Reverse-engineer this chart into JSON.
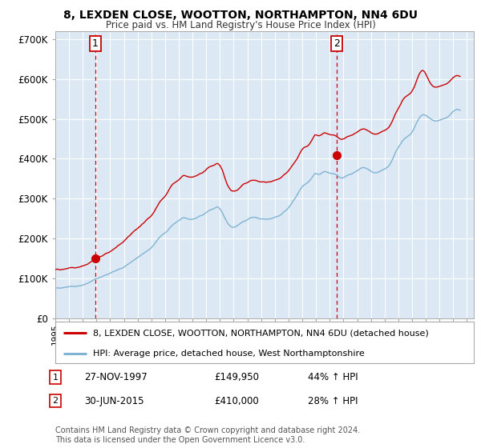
{
  "title1": "8, LEXDEN CLOSE, WOOTTON, NORTHAMPTON, NN4 6DU",
  "title2": "Price paid vs. HM Land Registry's House Price Index (HPI)",
  "ylabel_ticks": [
    "£0",
    "£100K",
    "£200K",
    "£300K",
    "£400K",
    "£500K",
    "£600K",
    "£700K"
  ],
  "ytick_vals": [
    0,
    100000,
    200000,
    300000,
    400000,
    500000,
    600000,
    700000
  ],
  "ylim": [
    0,
    720000
  ],
  "xlim_start": 1995.0,
  "xlim_end": 2025.5,
  "xtick_years": [
    1995,
    1996,
    1997,
    1998,
    1999,
    2000,
    2001,
    2002,
    2003,
    2004,
    2005,
    2006,
    2007,
    2008,
    2009,
    2010,
    2011,
    2012,
    2013,
    2014,
    2015,
    2016,
    2017,
    2018,
    2019,
    2020,
    2021,
    2022,
    2023,
    2024,
    2025
  ],
  "sale1_x": 1997.92,
  "sale1_y": 149950,
  "sale1_label": "1",
  "sale1_date": "27-NOV-1997",
  "sale1_price": "£149,950",
  "sale1_hpi": "44% ↑ HPI",
  "sale2_x": 2015.5,
  "sale2_y": 410000,
  "sale2_label": "2",
  "sale2_date": "30-JUN-2015",
  "sale2_price": "£410,000",
  "sale2_hpi": "28% ↑ HPI",
  "legend_line1": "8, LEXDEN CLOSE, WOOTTON, NORTHAMPTON, NN4 6DU (detached house)",
  "legend_line2": "HPI: Average price, detached house, West Northamptonshire",
  "footer": "Contains HM Land Registry data © Crown copyright and database right 2024.\nThis data is licensed under the Open Government Licence v3.0.",
  "line_color_red": "#cc0000",
  "line_color_blue": "#7fb3d3",
  "marker_color_red": "#cc0000",
  "bg_color": "#ffffff",
  "plot_bg_color": "#dce9f5",
  "grid_color": "#ffffff",
  "hpi_red_years": [
    1995.0,
    1995.08,
    1995.17,
    1995.25,
    1995.33,
    1995.42,
    1995.5,
    1995.58,
    1995.67,
    1995.75,
    1995.83,
    1995.92,
    1996.0,
    1996.08,
    1996.17,
    1996.25,
    1996.33,
    1996.42,
    1996.5,
    1996.58,
    1996.67,
    1996.75,
    1996.83,
    1996.92,
    1997.0,
    1997.08,
    1997.17,
    1997.25,
    1997.33,
    1997.42,
    1997.5,
    1997.58,
    1997.67,
    1997.75,
    1997.83,
    1997.92,
    1998.0,
    1998.08,
    1998.17,
    1998.25,
    1998.33,
    1998.42,
    1998.5,
    1998.58,
    1998.67,
    1998.75,
    1998.83,
    1998.92,
    1999.0,
    1999.08,
    1999.17,
    1999.25,
    1999.33,
    1999.42,
    1999.5,
    1999.58,
    1999.67,
    1999.75,
    1999.83,
    1999.92,
    2000.0,
    2000.08,
    2000.17,
    2000.25,
    2000.33,
    2000.42,
    2000.5,
    2000.58,
    2000.67,
    2000.75,
    2000.83,
    2000.92,
    2001.0,
    2001.08,
    2001.17,
    2001.25,
    2001.33,
    2001.42,
    2001.5,
    2001.58,
    2001.67,
    2001.75,
    2001.83,
    2001.92,
    2002.0,
    2002.08,
    2002.17,
    2002.25,
    2002.33,
    2002.42,
    2002.5,
    2002.58,
    2002.67,
    2002.75,
    2002.83,
    2002.92,
    2003.0,
    2003.08,
    2003.17,
    2003.25,
    2003.33,
    2003.42,
    2003.5,
    2003.58,
    2003.67,
    2003.75,
    2003.83,
    2003.92,
    2004.0,
    2004.08,
    2004.17,
    2004.25,
    2004.33,
    2004.42,
    2004.5,
    2004.58,
    2004.67,
    2004.75,
    2004.83,
    2004.92,
    2005.0,
    2005.08,
    2005.17,
    2005.25,
    2005.33,
    2005.42,
    2005.5,
    2005.58,
    2005.67,
    2005.75,
    2005.83,
    2005.92,
    2006.0,
    2006.08,
    2006.17,
    2006.25,
    2006.33,
    2006.42,
    2006.5,
    2006.58,
    2006.67,
    2006.75,
    2006.83,
    2006.92,
    2007.0,
    2007.08,
    2007.17,
    2007.25,
    2007.33,
    2007.42,
    2007.5,
    2007.58,
    2007.67,
    2007.75,
    2007.83,
    2007.92,
    2008.0,
    2008.08,
    2008.17,
    2008.25,
    2008.33,
    2008.42,
    2008.5,
    2008.58,
    2008.67,
    2008.75,
    2008.83,
    2008.92,
    2009.0,
    2009.08,
    2009.17,
    2009.25,
    2009.33,
    2009.42,
    2009.5,
    2009.58,
    2009.67,
    2009.75,
    2009.83,
    2009.92,
    2010.0,
    2010.08,
    2010.17,
    2010.25,
    2010.33,
    2010.42,
    2010.5,
    2010.58,
    2010.67,
    2010.75,
    2010.83,
    2010.92,
    2011.0,
    2011.08,
    2011.17,
    2011.25,
    2011.33,
    2011.42,
    2011.5,
    2011.58,
    2011.67,
    2011.75,
    2011.83,
    2011.92,
    2012.0,
    2012.08,
    2012.17,
    2012.25,
    2012.33,
    2012.42,
    2012.5,
    2012.58,
    2012.67,
    2012.75,
    2012.83,
    2012.92,
    2013.0,
    2013.08,
    2013.17,
    2013.25,
    2013.33,
    2013.42,
    2013.5,
    2013.58,
    2013.67,
    2013.75,
    2013.83,
    2013.92,
    2014.0,
    2014.08,
    2014.17,
    2014.25,
    2014.33,
    2014.42,
    2014.5,
    2014.58,
    2014.67,
    2014.75,
    2014.83,
    2014.92,
    2015.0,
    2015.08,
    2015.17,
    2015.25,
    2015.33,
    2015.42,
    2015.5,
    2015.58,
    2015.67,
    2015.75,
    2015.83,
    2015.92,
    2016.0,
    2016.08,
    2016.17,
    2016.25,
    2016.33,
    2016.42,
    2016.5,
    2016.58,
    2016.67,
    2016.75,
    2016.83,
    2016.92,
    2017.0,
    2017.08,
    2017.17,
    2017.25,
    2017.33,
    2017.42,
    2017.5,
    2017.58,
    2017.67,
    2017.75,
    2017.83,
    2017.92,
    2018.0,
    2018.08,
    2018.17,
    2018.25,
    2018.33,
    2018.42,
    2018.5,
    2018.58,
    2018.67,
    2018.75,
    2018.83,
    2018.92,
    2019.0,
    2019.08,
    2019.17,
    2019.25,
    2019.33,
    2019.42,
    2019.5,
    2019.58,
    2019.67,
    2019.75,
    2019.83,
    2019.92,
    2020.0,
    2020.08,
    2020.17,
    2020.25,
    2020.33,
    2020.42,
    2020.5,
    2020.58,
    2020.67,
    2020.75,
    2020.83,
    2020.92,
    2021.0,
    2021.08,
    2021.17,
    2021.25,
    2021.33,
    2021.42,
    2021.5,
    2021.58,
    2021.67,
    2021.75,
    2021.83,
    2021.92,
    2022.0,
    2022.08,
    2022.17,
    2022.25,
    2022.33,
    2022.42,
    2022.5,
    2022.58,
    2022.67,
    2022.75,
    2022.83,
    2022.92,
    2023.0,
    2023.08,
    2023.17,
    2023.25,
    2023.33,
    2023.42,
    2023.5,
    2023.58,
    2023.67,
    2023.75,
    2023.83,
    2023.92,
    2024.0,
    2024.08,
    2024.17,
    2024.25,
    2024.33,
    2024.42,
    2024.5
  ],
  "hpi_red_vals": [
    122000,
    122500,
    123000,
    122000,
    121000,
    121500,
    122000,
    122500,
    123000,
    123500,
    124000,
    125000,
    126000,
    126500,
    127000,
    127000,
    126500,
    126000,
    126500,
    127000,
    127500,
    128000,
    129000,
    130000,
    131000,
    132000,
    133000,
    134000,
    135000,
    137000,
    139000,
    141000,
    143000,
    146000,
    148000,
    149950,
    151000,
    152000,
    153000,
    154000,
    155000,
    156000,
    158000,
    160000,
    162000,
    163000,
    164000,
    165000,
    167000,
    169000,
    171000,
    173000,
    175000,
    177000,
    180000,
    182000,
    184000,
    186000,
    188000,
    190000,
    193000,
    196000,
    199000,
    202000,
    205000,
    207000,
    210000,
    213000,
    216000,
    219000,
    221000,
    223000,
    225000,
    228000,
    230000,
    233000,
    236000,
    238000,
    241000,
    244000,
    247000,
    250000,
    252000,
    254000,
    257000,
    261000,
    265000,
    270000,
    275000,
    280000,
    285000,
    290000,
    294000,
    297000,
    300000,
    303000,
    306000,
    310000,
    315000,
    320000,
    325000,
    330000,
    334000,
    337000,
    339000,
    341000,
    343000,
    345000,
    347000,
    350000,
    353000,
    356000,
    358000,
    358000,
    357000,
    356000,
    355000,
    354000,
    354000,
    354000,
    354000,
    355000,
    356000,
    357000,
    358000,
    360000,
    362000,
    363000,
    364000,
    365000,
    368000,
    370000,
    373000,
    376000,
    378000,
    380000,
    381000,
    382000,
    383000,
    384000,
    386000,
    388000,
    388000,
    386000,
    383000,
    378000,
    372000,
    364000,
    355000,
    346000,
    338000,
    332000,
    327000,
    323000,
    320000,
    319000,
    319000,
    319000,
    320000,
    321000,
    323000,
    326000,
    329000,
    332000,
    335000,
    337000,
    338000,
    339000,
    340000,
    342000,
    344000,
    345000,
    346000,
    346000,
    346000,
    346000,
    345000,
    344000,
    343000,
    342000,
    342000,
    342000,
    342000,
    342000,
    341000,
    341000,
    342000,
    342000,
    342000,
    343000,
    344000,
    345000,
    346000,
    347000,
    348000,
    349000,
    350000,
    352000,
    354000,
    357000,
    360000,
    362000,
    364000,
    367000,
    370000,
    374000,
    378000,
    382000,
    386000,
    390000,
    394000,
    398000,
    403000,
    409000,
    414000,
    420000,
    424000,
    427000,
    429000,
    430000,
    431000,
    433000,
    436000,
    440000,
    445000,
    450000,
    455000,
    460000,
    460000,
    459000,
    458000,
    458000,
    459000,
    461000,
    463000,
    465000,
    465000,
    464000,
    463000,
    462000,
    461000,
    460000,
    460000,
    460000,
    459000,
    458000,
    456000,
    454000,
    452000,
    450000,
    449000,
    449000,
    450000,
    451000,
    453000,
    455000,
    456000,
    457000,
    458000,
    459000,
    460000,
    462000,
    464000,
    465000,
    467000,
    469000,
    471000,
    473000,
    474000,
    475000,
    475000,
    474000,
    473000,
    471000,
    470000,
    468000,
    466000,
    464000,
    463000,
    462000,
    462000,
    462000,
    463000,
    464000,
    466000,
    467000,
    469000,
    470000,
    471000,
    473000,
    475000,
    477000,
    480000,
    485000,
    490000,
    496000,
    503000,
    510000,
    516000,
    521000,
    526000,
    531000,
    537000,
    543000,
    548000,
    552000,
    555000,
    557000,
    559000,
    561000,
    563000,
    566000,
    570000,
    575000,
    581000,
    588000,
    596000,
    604000,
    611000,
    616000,
    620000,
    622000,
    621000,
    618000,
    613000,
    607000,
    601000,
    595000,
    590000,
    586000,
    583000,
    581000,
    580000,
    580000,
    580000,
    581000,
    582000,
    583000,
    584000,
    585000,
    586000,
    587000,
    588000,
    590000,
    592000,
    595000,
    598000,
    601000,
    604000,
    606000,
    608000,
    609000,
    609000,
    608000,
    607000
  ],
  "hpi_blue_years": [
    1995.0,
    1995.08,
    1995.17,
    1995.25,
    1995.33,
    1995.42,
    1995.5,
    1995.58,
    1995.67,
    1995.75,
    1995.83,
    1995.92,
    1996.0,
    1996.08,
    1996.17,
    1996.25,
    1996.33,
    1996.42,
    1996.5,
    1996.58,
    1996.67,
    1996.75,
    1996.83,
    1996.92,
    1997.0,
    1997.08,
    1997.17,
    1997.25,
    1997.33,
    1997.42,
    1997.5,
    1997.58,
    1997.67,
    1997.75,
    1997.83,
    1997.92,
    1998.0,
    1998.08,
    1998.17,
    1998.25,
    1998.33,
    1998.42,
    1998.5,
    1998.58,
    1998.67,
    1998.75,
    1998.83,
    1998.92,
    1999.0,
    1999.08,
    1999.17,
    1999.25,
    1999.33,
    1999.42,
    1999.5,
    1999.58,
    1999.67,
    1999.75,
    1999.83,
    1999.92,
    2000.0,
    2000.08,
    2000.17,
    2000.25,
    2000.33,
    2000.42,
    2000.5,
    2000.58,
    2000.67,
    2000.75,
    2000.83,
    2000.92,
    2001.0,
    2001.08,
    2001.17,
    2001.25,
    2001.33,
    2001.42,
    2001.5,
    2001.58,
    2001.67,
    2001.75,
    2001.83,
    2001.92,
    2002.0,
    2002.08,
    2002.17,
    2002.25,
    2002.33,
    2002.42,
    2002.5,
    2002.58,
    2002.67,
    2002.75,
    2002.83,
    2002.92,
    2003.0,
    2003.08,
    2003.17,
    2003.25,
    2003.33,
    2003.42,
    2003.5,
    2003.58,
    2003.67,
    2003.75,
    2003.83,
    2003.92,
    2004.0,
    2004.08,
    2004.17,
    2004.25,
    2004.33,
    2004.42,
    2004.5,
    2004.58,
    2004.67,
    2004.75,
    2004.83,
    2004.92,
    2005.0,
    2005.08,
    2005.17,
    2005.25,
    2005.33,
    2005.42,
    2005.5,
    2005.58,
    2005.67,
    2005.75,
    2005.83,
    2005.92,
    2006.0,
    2006.08,
    2006.17,
    2006.25,
    2006.33,
    2006.42,
    2006.5,
    2006.58,
    2006.67,
    2006.75,
    2006.83,
    2006.92,
    2007.0,
    2007.08,
    2007.17,
    2007.25,
    2007.33,
    2007.42,
    2007.5,
    2007.58,
    2007.67,
    2007.75,
    2007.83,
    2007.92,
    2008.0,
    2008.08,
    2008.17,
    2008.25,
    2008.33,
    2008.42,
    2008.5,
    2008.58,
    2008.67,
    2008.75,
    2008.83,
    2008.92,
    2009.0,
    2009.08,
    2009.17,
    2009.25,
    2009.33,
    2009.42,
    2009.5,
    2009.58,
    2009.67,
    2009.75,
    2009.83,
    2009.92,
    2010.0,
    2010.08,
    2010.17,
    2010.25,
    2010.33,
    2010.42,
    2010.5,
    2010.58,
    2010.67,
    2010.75,
    2010.83,
    2010.92,
    2011.0,
    2011.08,
    2011.17,
    2011.25,
    2011.33,
    2011.42,
    2011.5,
    2011.58,
    2011.67,
    2011.75,
    2011.83,
    2011.92,
    2012.0,
    2012.08,
    2012.17,
    2012.25,
    2012.33,
    2012.42,
    2012.5,
    2012.58,
    2012.67,
    2012.75,
    2012.83,
    2012.92,
    2013.0,
    2013.08,
    2013.17,
    2013.25,
    2013.33,
    2013.42,
    2013.5,
    2013.58,
    2013.67,
    2013.75,
    2013.83,
    2013.92,
    2014.0,
    2014.08,
    2014.17,
    2014.25,
    2014.33,
    2014.42,
    2014.5,
    2014.58,
    2014.67,
    2014.75,
    2014.83,
    2014.92,
    2015.0,
    2015.08,
    2015.17,
    2015.25,
    2015.33,
    2015.42,
    2015.5,
    2015.58,
    2015.67,
    2015.75,
    2015.83,
    2015.92,
    2016.0,
    2016.08,
    2016.17,
    2016.25,
    2016.33,
    2016.42,
    2016.5,
    2016.58,
    2016.67,
    2016.75,
    2016.83,
    2016.92,
    2017.0,
    2017.08,
    2017.17,
    2017.25,
    2017.33,
    2017.42,
    2017.5,
    2017.58,
    2017.67,
    2017.75,
    2017.83,
    2017.92,
    2018.0,
    2018.08,
    2018.17,
    2018.25,
    2018.33,
    2018.42,
    2018.5,
    2018.58,
    2018.67,
    2018.75,
    2018.83,
    2018.92,
    2019.0,
    2019.08,
    2019.17,
    2019.25,
    2019.33,
    2019.42,
    2019.5,
    2019.58,
    2019.67,
    2019.75,
    2019.83,
    2019.92,
    2020.0,
    2020.08,
    2020.17,
    2020.25,
    2020.33,
    2020.42,
    2020.5,
    2020.58,
    2020.67,
    2020.75,
    2020.83,
    2020.92,
    2021.0,
    2021.08,
    2021.17,
    2021.25,
    2021.33,
    2021.42,
    2021.5,
    2021.58,
    2021.67,
    2021.75,
    2021.83,
    2021.92,
    2022.0,
    2022.08,
    2022.17,
    2022.25,
    2022.33,
    2022.42,
    2022.5,
    2022.58,
    2022.67,
    2022.75,
    2022.83,
    2022.92,
    2023.0,
    2023.08,
    2023.17,
    2023.25,
    2023.33,
    2023.42,
    2023.5,
    2023.58,
    2023.67,
    2023.75,
    2023.83,
    2023.92,
    2024.0,
    2024.08,
    2024.17,
    2024.25,
    2024.33,
    2024.42,
    2024.5
  ],
  "hpi_blue_vals": [
    75000,
    75500,
    76000,
    75500,
    75000,
    75500,
    76000,
    76500,
    77000,
    77500,
    78000,
    78500,
    79000,
    79500,
    80000,
    80000,
    79500,
    79000,
    79500,
    80000,
    80500,
    81000,
    81500,
    82000,
    83000,
    84000,
    85000,
    86000,
    87000,
    88500,
    90000,
    91500,
    93000,
    95000,
    97000,
    98000,
    99000,
    100000,
    101000,
    102000,
    103000,
    104000,
    106000,
    107000,
    108000,
    109000,
    110000,
    111000,
    113000,
    114000,
    116000,
    117000,
    118000,
    119000,
    121000,
    122000,
    123000,
    124000,
    125000,
    126000,
    128000,
    130000,
    132000,
    134000,
    136000,
    138000,
    140000,
    142000,
    144000,
    146000,
    148000,
    150000,
    152000,
    154000,
    156000,
    158000,
    160000,
    162000,
    164000,
    166000,
    168000,
    170000,
    172000,
    174000,
    177000,
    180000,
    183000,
    187000,
    191000,
    195000,
    199000,
    202000,
    205000,
    208000,
    210000,
    212000,
    214000,
    216000,
    219000,
    222000,
    226000,
    229000,
    232000,
    235000,
    237000,
    239000,
    241000,
    243000,
    245000,
    247000,
    249000,
    251000,
    252000,
    252000,
    251000,
    250000,
    249000,
    248000,
    248000,
    248000,
    248000,
    249000,
    250000,
    251000,
    252000,
    254000,
    256000,
    257000,
    258000,
    259000,
    261000,
    263000,
    265000,
    267000,
    269000,
    271000,
    272000,
    273000,
    274000,
    275000,
    277000,
    279000,
    279000,
    277000,
    274000,
    270000,
    265000,
    259000,
    253000,
    247000,
    242000,
    237000,
    234000,
    231000,
    229000,
    228000,
    228000,
    229000,
    230000,
    232000,
    234000,
    236000,
    238000,
    240000,
    242000,
    243000,
    244000,
    245000,
    247000,
    249000,
    251000,
    252000,
    253000,
    253000,
    253000,
    253000,
    252000,
    251000,
    250000,
    249000,
    249000,
    249000,
    249000,
    249000,
    248000,
    248000,
    249000,
    249000,
    249000,
    250000,
    251000,
    252000,
    253000,
    254000,
    255000,
    256000,
    257000,
    259000,
    261000,
    264000,
    267000,
    269000,
    271000,
    274000,
    277000,
    281000,
    285000,
    289000,
    294000,
    298000,
    302000,
    307000,
    312000,
    317000,
    322000,
    326000,
    330000,
    333000,
    335000,
    337000,
    339000,
    341000,
    344000,
    347000,
    351000,
    355000,
    359000,
    363000,
    363000,
    362000,
    361000,
    361000,
    362000,
    364000,
    366000,
    368000,
    368000,
    367000,
    366000,
    365000,
    364000,
    363000,
    363000,
    363000,
    362000,
    361000,
    359000,
    357000,
    355000,
    353000,
    352000,
    352000,
    353000,
    354000,
    356000,
    358000,
    359000,
    360000,
    361000,
    362000,
    363000,
    365000,
    367000,
    368000,
    370000,
    372000,
    374000,
    376000,
    377000,
    378000,
    378000,
    377000,
    376000,
    374000,
    373000,
    371000,
    369000,
    367000,
    366000,
    365000,
    365000,
    365000,
    366000,
    367000,
    369000,
    370000,
    372000,
    373000,
    374000,
    376000,
    378000,
    380000,
    383000,
    388000,
    393000,
    399000,
    406000,
    413000,
    419000,
    424000,
    428000,
    433000,
    437000,
    442000,
    446000,
    449000,
    452000,
    454000,
    456000,
    458000,
    460000,
    463000,
    467000,
    472000,
    478000,
    484000,
    490000,
    496000,
    501000,
    505000,
    508000,
    510000,
    511000,
    510000,
    509000,
    507000,
    505000,
    503000,
    501000,
    499000,
    497000,
    496000,
    495000,
    495000,
    495000,
    496000,
    497000,
    498000,
    499000,
    500000,
    501000,
    502000,
    503000,
    505000,
    507000,
    510000,
    513000,
    516000,
    519000,
    521000,
    523000,
    524000,
    524000,
    523000,
    522000
  ]
}
